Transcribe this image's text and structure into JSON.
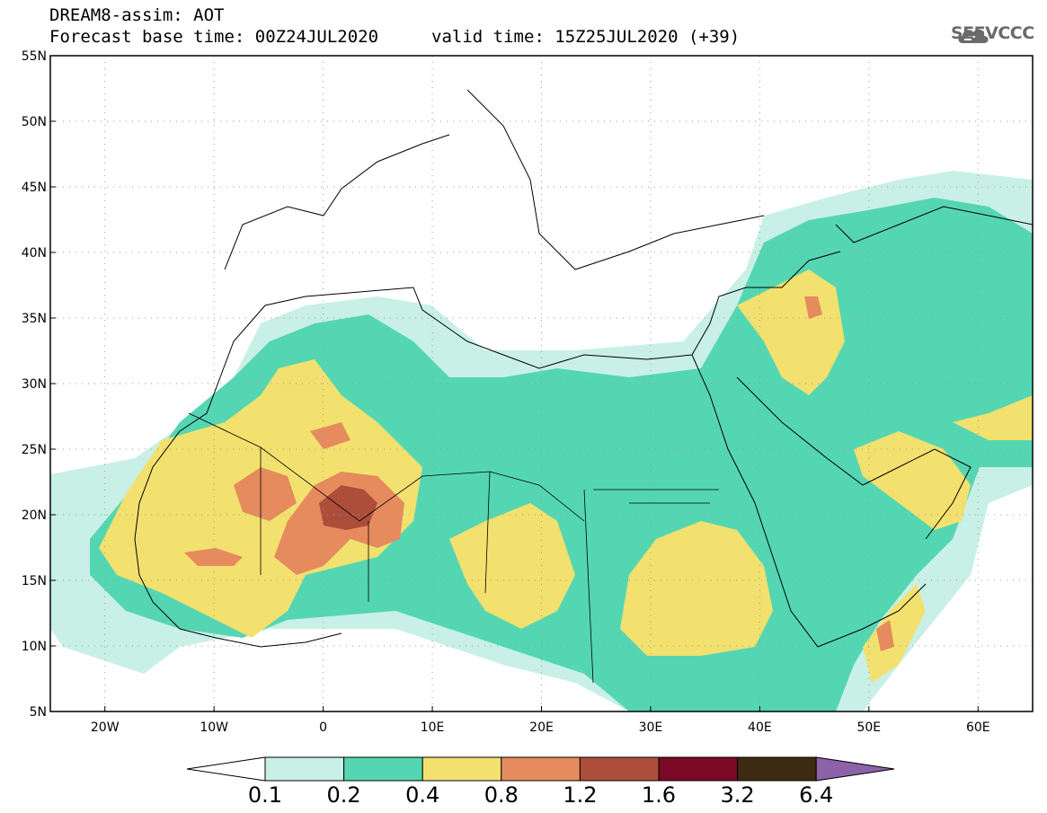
{
  "header": {
    "line1": "DREAM8-assim: AOT",
    "line2": "Forecast base time: 00Z24JUL2020",
    "line3": "valid time: 15Z25JUL2020 (+39)"
  },
  "logo": {
    "text": "SEEVCCC",
    "icon": "cloud-icon"
  },
  "map": {
    "lon_range": [
      -25,
      65
    ],
    "lat_range": [
      5,
      55
    ],
    "lat_ticks": [
      "55N",
      "50N",
      "45N",
      "40N",
      "35N",
      "30N",
      "25N",
      "20N",
      "15N",
      "10N",
      "5N"
    ],
    "lon_ticks": [
      "20W",
      "10W",
      "0",
      "10E",
      "20E",
      "30E",
      "40E",
      "50E",
      "60E"
    ],
    "grid": true
  },
  "colorbar": {
    "labels": [
      "0.1",
      "0.2",
      "0.4",
      "0.8",
      "1.2",
      "1.6",
      "3.2",
      "6.4"
    ],
    "colors": [
      "#ffffff",
      "#c8f0e6",
      "#55d6b2",
      "#f2e16f",
      "#e68b5e",
      "#ad4e3b",
      "#7a0a25",
      "#3d2a12",
      "#8c63a8"
    ]
  }
}
